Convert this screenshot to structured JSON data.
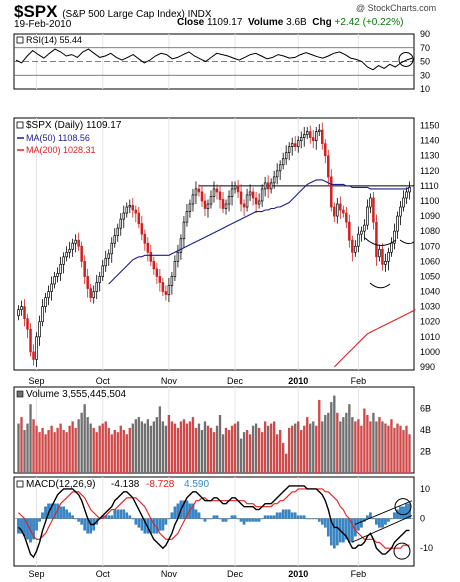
{
  "header": {
    "symbol": "$SPX",
    "name": "(S&P 500 Large Cap Index) INDX",
    "date": "19-Feb-2010",
    "brand": "@ StockCharts.com",
    "close_label": "Close",
    "close_value": "1109.17",
    "volume_label": "Volume",
    "volume_value": "3.6B",
    "chg_label": "Chg",
    "chg_value": "+2.42 (+0.22%)",
    "chg_color": "#007700"
  },
  "chart_data": {
    "type": "candlestick",
    "x_labels": [
      "Sep",
      "Oct",
      "Nov",
      "Dec",
      "2010",
      "Feb"
    ],
    "rsi": {
      "label": "RSI(14) 55.44",
      "ticks": [
        90,
        70,
        50,
        30,
        10
      ],
      "ylim": [
        10,
        90
      ],
      "reference_lines": [
        70,
        50,
        30
      ],
      "values": [
        52,
        48,
        58,
        66,
        60,
        55,
        62,
        68,
        64,
        58,
        60,
        56,
        64,
        68,
        62,
        56,
        58,
        62,
        56,
        52,
        56,
        60,
        54,
        48,
        52,
        58,
        62,
        60,
        54,
        56,
        60,
        64,
        58,
        54,
        50,
        56,
        62,
        60,
        58,
        55,
        52,
        56,
        60,
        62,
        58,
        54,
        56,
        60,
        58,
        55,
        56,
        60,
        63,
        60,
        57,
        55,
        58,
        62,
        64,
        60,
        55,
        53,
        50,
        42,
        38,
        44,
        40,
        46,
        42,
        48,
        52,
        55
      ]
    },
    "price": {
      "label": "$SPX (Daily) 1109.17",
      "ma50_label": "MA(50) 1108.56",
      "ma200_label": "MA(200) 1028.31",
      "ma50_color": "#1c1c8c",
      "ma200_color": "#e02020",
      "ticks": [
        1150,
        1140,
        1130,
        1120,
        1110,
        1100,
        1090,
        1080,
        1070,
        1060,
        1050,
        1040,
        1030,
        1020,
        1010,
        1000,
        990
      ],
      "ylim": [
        988,
        1155
      ],
      "horizontal_line": 1110,
      "closes": [
        1028,
        1030,
        1022,
        1015,
        1000,
        995,
        1010,
        1020,
        1030,
        1036,
        1040,
        1045,
        1050,
        1052,
        1058,
        1063,
        1066,
        1068,
        1072,
        1074,
        1070,
        1060,
        1050,
        1042,
        1036,
        1040,
        1046,
        1050,
        1057,
        1062,
        1065,
        1072,
        1077,
        1082,
        1088,
        1092,
        1096,
        1097,
        1094,
        1092,
        1085,
        1078,
        1072,
        1066,
        1060,
        1055,
        1050,
        1046,
        1040,
        1038,
        1044,
        1050,
        1060,
        1066,
        1075,
        1086,
        1093,
        1098,
        1104,
        1108,
        1106,
        1100,
        1095,
        1098,
        1103,
        1108,
        1106,
        1101,
        1095,
        1098,
        1103,
        1108,
        1110,
        1106,
        1098,
        1096,
        1104,
        1106,
        1102,
        1098,
        1100,
        1108,
        1112,
        1108,
        1112,
        1116,
        1120,
        1124,
        1128,
        1132,
        1136,
        1138,
        1136,
        1140,
        1142,
        1144,
        1146,
        1142,
        1140,
        1146,
        1147,
        1138,
        1130,
        1116,
        1096,
        1090,
        1098,
        1094,
        1092,
        1086,
        1074,
        1066,
        1070,
        1078,
        1080,
        1084,
        1096,
        1102,
        1086,
        1063,
        1068,
        1058,
        1060,
        1066,
        1072,
        1080,
        1090,
        1096,
        1102,
        1106,
        1109
      ],
      "ma50": [
        null,
        null,
        null,
        null,
        null,
        null,
        null,
        null,
        null,
        null,
        null,
        null,
        null,
        null,
        null,
        null,
        null,
        null,
        null,
        null,
        null,
        null,
        null,
        null,
        null,
        null,
        null,
        null,
        null,
        null,
        1045,
        1047,
        1049,
        1051,
        1053,
        1055,
        1057,
        1059,
        1061,
        1062,
        1063,
        1063,
        1064,
        1064,
        1064,
        1064,
        1064,
        1064,
        1064,
        1064,
        1064,
        1065,
        1066,
        1067,
        1068,
        1069,
        1070,
        1071,
        1072,
        1073,
        1074,
        1075,
        1076,
        1077,
        1078,
        1079,
        1080,
        1081,
        1082,
        1083,
        1084,
        1085,
        1086,
        1087,
        1088,
        1089,
        1090,
        1091,
        1092,
        1093,
        1093,
        1093,
        1094,
        1094,
        1095,
        1095,
        1096,
        1096,
        1097,
        1098,
        1099,
        1101,
        1103,
        1105,
        1107,
        1109,
        1111,
        1112,
        1113,
        1114,
        1114,
        1114,
        1113,
        1112,
        1111,
        1111,
        1111,
        1111,
        1111,
        1110,
        1110,
        1109,
        1109,
        1109,
        1109,
        1109,
        1109,
        1108,
        1108,
        1108,
        1108,
        1108,
        1108,
        1108,
        1108,
        1108,
        1108,
        1108,
        1108,
        1108,
        1109
      ],
      "ma200": [
        null,
        null,
        null,
        null,
        null,
        null,
        null,
        null,
        null,
        null,
        null,
        null,
        null,
        null,
        null,
        null,
        null,
        null,
        null,
        null,
        null,
        null,
        null,
        null,
        null,
        null,
        null,
        null,
        null,
        null,
        null,
        null,
        null,
        null,
        null,
        null,
        null,
        null,
        null,
        null,
        null,
        null,
        null,
        null,
        null,
        null,
        null,
        null,
        null,
        null,
        null,
        null,
        null,
        null,
        null,
        null,
        null,
        null,
        null,
        null,
        null,
        null,
        null,
        null,
        null,
        null,
        null,
        null,
        null,
        null,
        null,
        null,
        null,
        null,
        null,
        null,
        null,
        null,
        null,
        null,
        null,
        null,
        null,
        null,
        null,
        null,
        null,
        null,
        null,
        null,
        null,
        null,
        null,
        null,
        null,
        null,
        null,
        null,
        null,
        null,
        null,
        null,
        null,
        null,
        null,
        990,
        992,
        994,
        996,
        998,
        1000,
        1002,
        1004,
        1006,
        1008,
        1010,
        1012,
        1013,
        1014,
        1015,
        1016,
        1017,
        1018,
        1019,
        1020,
        1021,
        1022,
        1023,
        1024,
        1025,
        1026,
        1027,
        1028
      ]
    },
    "volume": {
      "label": "Volume 3,555,445,504",
      "ticks": [
        "6B",
        "4B",
        "2B"
      ],
      "tick_values": [
        6,
        4,
        2
      ],
      "ylim": [
        0,
        8
      ],
      "up_color": "#d04848",
      "down_color": "#707070",
      "values": [
        4.6,
        5.2,
        4.0,
        4.6,
        6.4,
        5.0,
        4.4,
        3.8,
        4.2,
        3.6,
        4.0,
        4.4,
        3.8,
        4.2,
        4.6,
        4.0,
        3.8,
        4.4,
        4.8,
        4.2,
        5.0,
        5.6,
        6.4,
        5.2,
        4.6,
        4.2,
        3.8,
        4.4,
        4.6,
        4.8,
        4.2,
        3.6,
        4.0,
        3.8,
        4.4,
        4.0,
        3.6,
        4.2,
        4.6,
        5.0,
        5.2,
        4.8,
        4.6,
        5.0,
        4.4,
        4.8,
        5.2,
        6.2,
        4.8,
        4.4,
        5.4,
        4.8,
        4.6,
        4.2,
        4.8,
        5.0,
        4.6,
        4.8,
        5.2,
        4.2,
        4.6,
        4.0,
        4.8,
        4.4,
        4.2,
        3.8,
        4.4,
        5.4,
        3.6,
        4.2,
        4.0,
        4.4,
        4.6,
        4.8,
        3.2,
        3.8,
        4.0,
        3.6,
        4.4,
        4.6,
        4.2,
        3.8,
        4.8,
        4.4,
        4.6,
        4.8,
        3.6,
        4.0,
        2.8,
        1.8,
        4.2,
        4.4,
        4.6,
        4.8,
        4.0,
        4.4,
        5.2,
        4.6,
        4.8,
        4.4,
        6.8,
        4.8,
        5.4,
        5.6,
        6.6,
        7.2,
        5.6,
        4.8,
        5.2,
        5.6,
        6.4,
        5.2,
        4.8,
        5.0,
        4.4,
        6.0,
        5.4,
        4.8,
        5.6,
        4.8,
        5.2,
        4.8,
        4.6,
        4.4,
        5.0,
        4.2,
        4.6,
        4.4,
        4.0,
        4.4,
        3.6
      ],
      "up": [
        0,
        1,
        0,
        0,
        0,
        1,
        1,
        1,
        1,
        1,
        1,
        1,
        1,
        1,
        1,
        1,
        1,
        1,
        1,
        1,
        0,
        0,
        0,
        0,
        0,
        1,
        1,
        1,
        1,
        1,
        1,
        1,
        1,
        1,
        1,
        1,
        1,
        1,
        0,
        0,
        0,
        0,
        0,
        0,
        0,
        0,
        0,
        0,
        0,
        0,
        1,
        1,
        1,
        1,
        1,
        1,
        1,
        1,
        1,
        1,
        0,
        0,
        0,
        1,
        1,
        1,
        0,
        0,
        0,
        1,
        1,
        1,
        1,
        0,
        0,
        0,
        1,
        1,
        0,
        0,
        1,
        1,
        1,
        0,
        1,
        1,
        1,
        1,
        1,
        1,
        1,
        1,
        0,
        1,
        1,
        1,
        1,
        0,
        0,
        1,
        1,
        0,
        0,
        0,
        0,
        0,
        1,
        0,
        0,
        0,
        0,
        0,
        1,
        1,
        1,
        1,
        1,
        1,
        0,
        0,
        1,
        0,
        1,
        1,
        1,
        1,
        1,
        1,
        1,
        1,
        1
      ]
    },
    "macd": {
      "label_prefix": "MACD(12,26,9)",
      "macd_value": "-4.138",
      "signal_value": "-8.728",
      "hist_value": "4.590",
      "macd_color": "#000000",
      "signal_color": "#e02020",
      "hist_color": "#3388cc",
      "ticks": [
        10,
        0,
        -10
      ],
      "ylim": [
        -16,
        14
      ],
      "macd": [
        -3,
        -4,
        -6,
        -9,
        -12,
        -13,
        -11,
        -8,
        -4,
        -1,
        2,
        4,
        6,
        8,
        9,
        10,
        10,
        10,
        10,
        9,
        8,
        6,
        3,
        0,
        -2,
        -2,
        -1,
        0,
        1,
        2,
        3,
        4,
        6,
        7,
        8,
        9,
        9,
        8,
        7,
        5,
        3,
        1,
        -1,
        -3,
        -5,
        -7,
        -8,
        -9,
        -10,
        -9,
        -7,
        -5,
        -2,
        0,
        3,
        5,
        7,
        8,
        9,
        9,
        8,
        7,
        6,
        6,
        6,
        7,
        7,
        6,
        5,
        5,
        6,
        7,
        7,
        6,
        5,
        4,
        4,
        4,
        4,
        3,
        3,
        4,
        5,
        5,
        5,
        6,
        7,
        8,
        9,
        10,
        11,
        11,
        11,
        11,
        11,
        11,
        10,
        10,
        10,
        10,
        9,
        8,
        6,
        3,
        -1,
        -3,
        -3,
        -4,
        -5,
        -6,
        -8,
        -10,
        -10,
        -9,
        -9,
        -8,
        -6,
        -5,
        -7,
        -10,
        -11,
        -12,
        -12,
        -11,
        -10,
        -8,
        -7,
        -6,
        -5,
        -4,
        -4
      ],
      "signal": [
        2,
        1,
        0,
        -2,
        -4,
        -6,
        -7,
        -7,
        -6,
        -5,
        -3,
        -1,
        1,
        3,
        5,
        6,
        7,
        8,
        9,
        9,
        9,
        8,
        7,
        5,
        3,
        2,
        1,
        0,
        0,
        1,
        2,
        3,
        3,
        4,
        5,
        6,
        7,
        7,
        7,
        7,
        6,
        5,
        4,
        2,
        0,
        -2,
        -3,
        -5,
        -6,
        -7,
        -7,
        -7,
        -6,
        -5,
        -3,
        -1,
        1,
        3,
        4,
        6,
        6,
        7,
        7,
        6,
        6,
        6,
        6,
        6,
        6,
        6,
        6,
        6,
        6,
        6,
        6,
        6,
        5,
        5,
        5,
        4,
        4,
        4,
        4,
        4,
        4,
        5,
        5,
        6,
        6,
        7,
        8,
        9,
        9,
        10,
        10,
        10,
        10,
        10,
        10,
        10,
        10,
        10,
        9,
        9,
        8,
        7,
        6,
        4,
        3,
        1,
        0,
        -2,
        -4,
        -5,
        -6,
        -7,
        -7,
        -7,
        -7,
        -8,
        -8,
        -9,
        -10,
        -10,
        -10,
        -10,
        -10,
        -10,
        -9,
        -9,
        -9
      ]
    }
  }
}
